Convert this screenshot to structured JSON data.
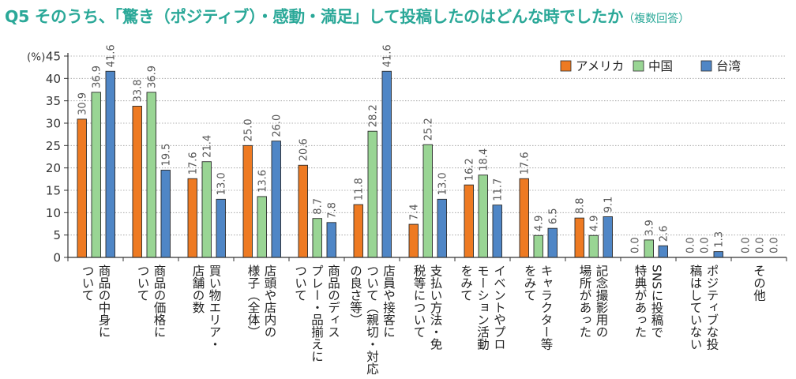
{
  "title": "Q5 そのうち、「驚き（ポジティブ）・感動・満足」して投稿したのはどんな時でしたか",
  "subtitle": "（複数回答）",
  "colors": {
    "title": "#2aa898"
  },
  "chart_data": {
    "type": "bar",
    "ylabel": "(%)",
    "ylim": [
      0,
      45
    ],
    "yticks": [
      0,
      5,
      10,
      15,
      20,
      25,
      30,
      35,
      40,
      45
    ],
    "grid": true,
    "legend_position": "top-right",
    "categories": [
      "商品の中身について",
      "商品の価格について",
      "買い物エリア・店舗の数",
      "店頭や店内の様子（全体）",
      "商品のディスプレー・品揃えについて",
      "店員や接客について（親切・対応の良さ等）",
      "支払い方法・免税等について",
      "イベントやプロモーション活動をみて",
      "キャラクター等をみて",
      "記念撮影用の場所があった",
      "SNSに投稿で特典があった",
      "ポジティブな投稿はしていない",
      "その他"
    ],
    "series": [
      {
        "name": "アメリカ",
        "color": "#ee7a22",
        "values": [
          30.9,
          33.8,
          17.6,
          25.0,
          20.6,
          11.8,
          7.4,
          16.2,
          17.6,
          8.8,
          0.0,
          0.0,
          0.0
        ],
        "labels": [
          "30.9",
          "33.8",
          "17.6",
          "25.0",
          "20.6",
          "11.8",
          "7.4",
          "16.2",
          "17.6",
          "8.8",
          "0.0",
          "0.0",
          "0.0"
        ]
      },
      {
        "name": "中国",
        "color": "#99d594",
        "values": [
          36.9,
          36.9,
          21.4,
          13.6,
          8.7,
          28.2,
          25.2,
          18.4,
          4.9,
          4.9,
          3.9,
          0.0,
          0.0
        ],
        "labels": [
          "36.9",
          "36.9",
          "21.4",
          "13.6",
          "8.7",
          "28.2",
          "25.2",
          "18.4",
          "4.9",
          "4.9",
          "3.9",
          "0.0",
          "0.0"
        ]
      },
      {
        "name": "台湾",
        "color": "#4f86c6",
        "values": [
          41.6,
          19.5,
          13.0,
          26.0,
          7.8,
          41.6,
          13.0,
          11.7,
          6.5,
          9.1,
          2.6,
          1.3,
          0.0
        ],
        "labels": [
          "41.6",
          "19.5",
          "13.0",
          "26.0",
          "7.8",
          "41.6",
          "13.0",
          "11.7",
          "6.5",
          "9.1",
          "2.6",
          "1.3",
          "0.0"
        ]
      }
    ],
    "axis_label_columns": [
      [
        "商品の中身に",
        "ついて"
      ],
      [
        "商品の価格に",
        "ついて"
      ],
      [
        "買い物エリア・",
        "店舗の数"
      ],
      [
        "店頭や店内の",
        "様子（全体）"
      ],
      [
        "商品のディス",
        "プレー・品揃えに",
        "ついて"
      ],
      [
        "店員や接客に",
        "ついて（親切・対応",
        "の良さ等）"
      ],
      [
        "支払い方法・免",
        "税等について"
      ],
      [
        "イベントやプロ",
        "モーション活動",
        "をみて"
      ],
      [
        "キャラクター等",
        "をみて"
      ],
      [
        "記念撮影用の",
        "場所があった"
      ],
      [
        "SNSに投稿で",
        "特典があった"
      ],
      [
        "ポジティブな投",
        "稿はしていない"
      ],
      [
        "その他"
      ]
    ]
  }
}
